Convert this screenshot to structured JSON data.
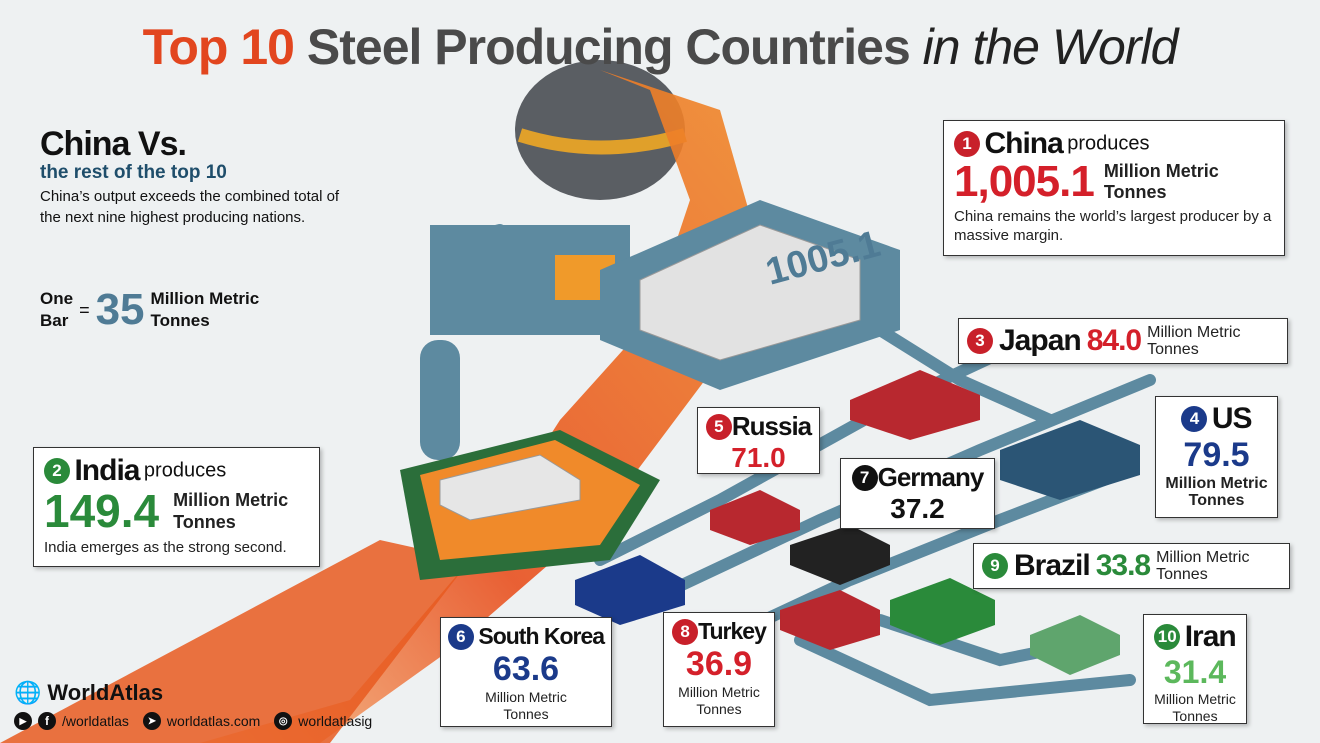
{
  "title": {
    "part1": "Top 10",
    "part2": "Steel Producing Countries",
    "part3": "in the World"
  },
  "intro": {
    "heading": "China Vs.",
    "subheading": "the rest of the top 10",
    "text": "China’s output exceeds the combined total of the next nine highest producing nations.",
    "bar_label_1": "One",
    "bar_label_2": "Bar",
    "equals": "=",
    "bar_value": "35",
    "bar_unit_1": "Million Metric",
    "bar_unit_2": "Tonnes"
  },
  "unit_line1": "Million Metric",
  "unit_line2": "Tonnes",
  "countries": [
    {
      "rank": "1",
      "name": "China",
      "verb": "produces",
      "value": "1,005.1",
      "note": "China remains the world’s largest producer by a massive margin.",
      "block_label": "1005.1"
    },
    {
      "rank": "2",
      "name": "India",
      "verb": "produces",
      "value": "149.4",
      "note": "India emerges as the strong second."
    },
    {
      "rank": "3",
      "name": "Japan",
      "value": "84.0"
    },
    {
      "rank": "4",
      "name": "US",
      "value": "79.5"
    },
    {
      "rank": "5",
      "name": "Russia",
      "value": "71.0"
    },
    {
      "rank": "6",
      "name": "South Korea",
      "value": "63.6"
    },
    {
      "rank": "7",
      "name": "Germany",
      "value": "37.2"
    },
    {
      "rank": "8",
      "name": "Turkey",
      "value": "36.9"
    },
    {
      "rank": "9",
      "name": "Brazil",
      "value": "33.8"
    },
    {
      "rank": "10",
      "name": "Iran",
      "value": "31.4"
    }
  ],
  "colors": {
    "orange": "#e2461f",
    "red": "#d4202a",
    "green": "#2a8a3a",
    "navy": "#1b3a8a",
    "pipe": "#5d8aa0"
  },
  "footer": {
    "brand": "WorldAtlas",
    "social": "/worldatlas",
    "website": "worldatlas.com",
    "instagram": "worldatlasig"
  }
}
